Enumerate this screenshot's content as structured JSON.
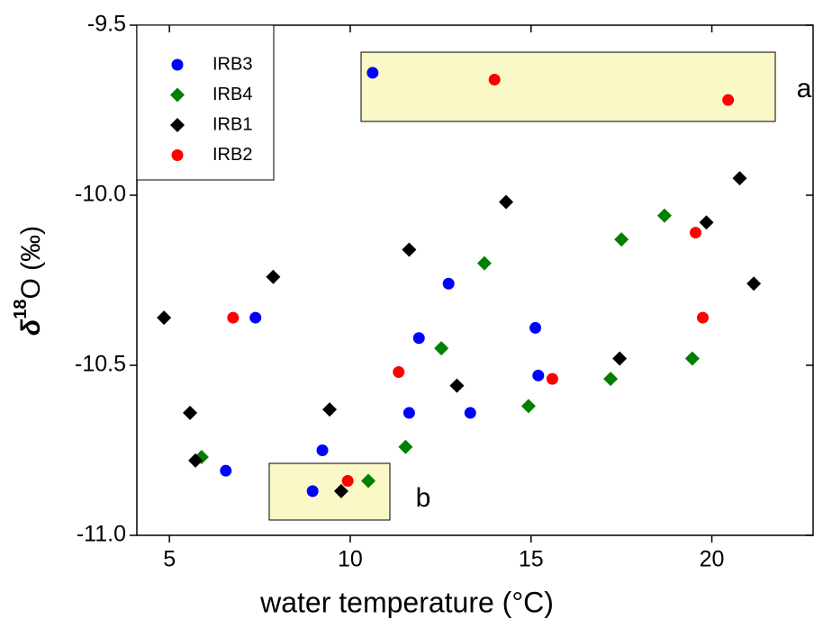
{
  "chart_data": {
    "type": "scatter",
    "xlabel": "water temperature (°C)",
    "ylabel": [
      "δ",
      "18",
      "O (‰)"
    ],
    "annotations": [
      "a",
      "b"
    ],
    "xlim": [
      4.1,
      22.8
    ],
    "xticks": [
      5,
      10,
      15,
      20
    ],
    "ylim": [
      -11.0,
      -9.5
    ],
    "yticks": [
      -9.5,
      {
        "value": -10.0,
        "label": "-10.0"
      },
      -10.5,
      {
        "value": -11.0,
        "label": "-11.0"
      }
    ],
    "legend": "upper left",
    "series": [
      {
        "name": "IRB3",
        "color": "#0000ff",
        "marker": "circle",
        "x": [
          10.62,
          7.38,
          11.9,
          12.72,
          15.12,
          15.2,
          11.63,
          13.32,
          9.23,
          6.56,
          8.96
        ],
        "values": [
          -9.64,
          -10.36,
          -10.42,
          -10.26,
          -10.39,
          -10.53,
          -10.64,
          -10.64,
          -10.75,
          -10.81,
          -10.87
        ]
      },
      {
        "name": "IRB4",
        "color": "#008000",
        "marker": "diamond",
        "x": [
          13.71,
          18.69,
          17.5,
          12.52,
          17.2,
          19.46,
          14.93,
          11.53,
          5.89,
          10.5
        ],
        "values": [
          -10.2,
          -10.06,
          -10.13,
          -10.45,
          -10.54,
          -10.48,
          -10.62,
          -10.74,
          -10.77,
          -10.84
        ]
      },
      {
        "name": "IRB1",
        "color": "#000000",
        "marker": "diamond",
        "x": [
          4.85,
          5.57,
          5.72,
          7.87,
          9.43,
          9.75,
          11.63,
          14.31,
          12.95,
          17.45,
          19.85,
          20.77,
          21.16
        ],
        "values": [
          -10.36,
          -10.64,
          -10.78,
          -10.24,
          -10.63,
          -10.87,
          -10.16,
          -10.02,
          -10.56,
          -10.48,
          -10.08,
          -9.95,
          -10.26
        ]
      },
      {
        "name": "IRB2",
        "color": "#ff0000",
        "marker": "circle",
        "x": [
          13.99,
          20.45,
          6.76,
          11.34,
          15.59,
          9.93,
          19.55,
          19.75
        ],
        "values": [
          -9.66,
          -9.72,
          -10.36,
          -10.52,
          -10.54,
          -10.84,
          -10.11,
          -10.36
        ]
      }
    ]
  }
}
